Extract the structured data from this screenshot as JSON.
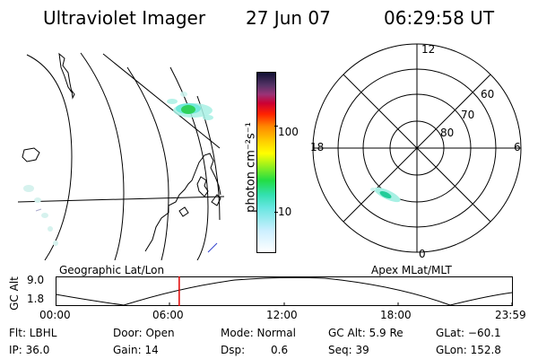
{
  "header": {
    "instrument": "Ultraviolet Imager",
    "date": "27 Jun 07",
    "time": "06:29:58 UT"
  },
  "colorbar": {
    "unit_label": "photon cm⁻²s⁻¹",
    "ticks": [
      "100",
      "10"
    ]
  },
  "polar_plot": {
    "mlt_labels": {
      "top": "12",
      "left": "18",
      "right": "6",
      "bottom": "0"
    },
    "lat_labels": [
      "60",
      "70",
      "80"
    ]
  },
  "projections": {
    "left_label": "Geographic Lat/Lon",
    "right_label": "Apex MLat/MLT"
  },
  "altitude_plot": {
    "ylabel": "GC Alt",
    "yticks": [
      "9.0",
      "1.8"
    ],
    "xticks": [
      "00:00",
      "06:00",
      "12:00",
      "18:00",
      "23:59"
    ],
    "current_time_hours": 6.5
  },
  "info": {
    "filter": "Flt: LBHL",
    "door": "Door: Open",
    "mode": "Mode: Normal",
    "gc_alt": "GC Alt: 5.9 Re",
    "glat": "GLat: −60.1",
    "ip": "IP: 36.0",
    "gain": "Gain: 14",
    "dsp_label": "Dsp:",
    "dsp_value": "0.6",
    "seq": "Seq: 39",
    "glon": "GLon: 152.8"
  },
  "colors": {
    "marker": "#e00000",
    "aurora_core": "#22cc44",
    "aurora_edge": "#66e8d8"
  }
}
